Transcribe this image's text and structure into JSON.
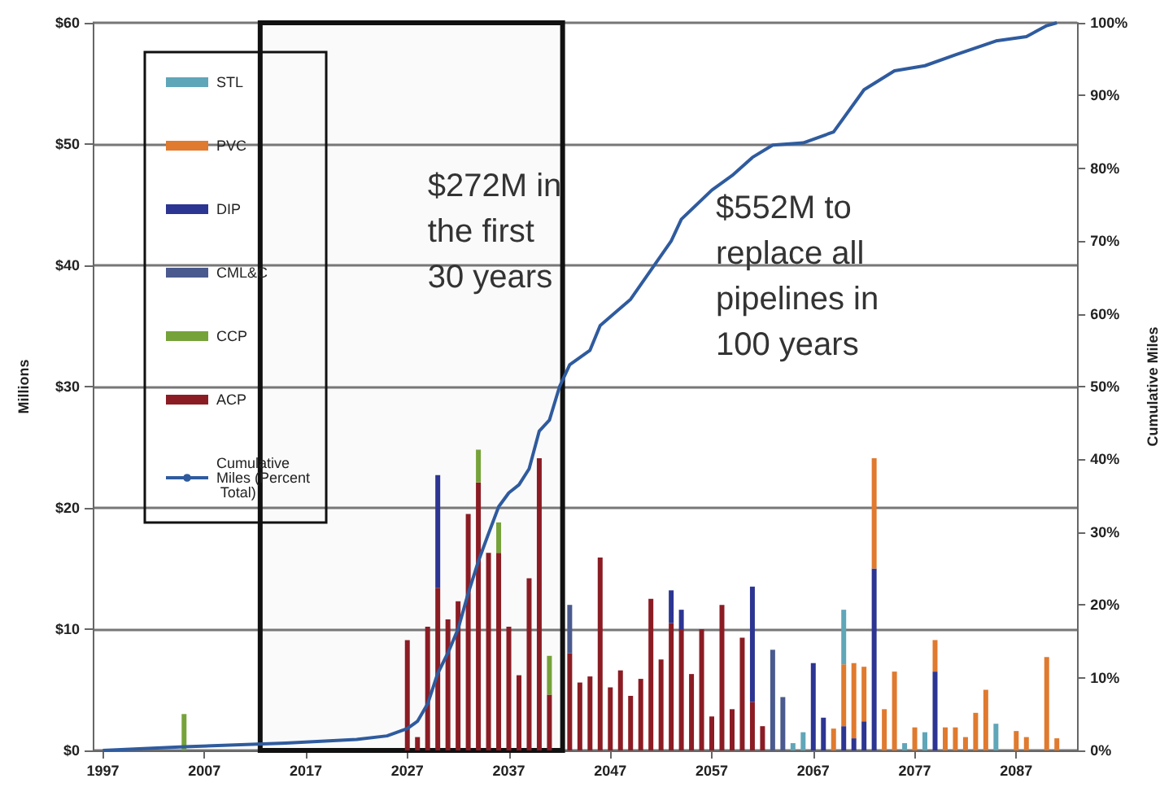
{
  "chart_data": {
    "type": "bar",
    "stacked": true,
    "ylabel": "Millions",
    "y2label": "Cumulative Miles",
    "x": [
      2005,
      2027,
      2028,
      2029,
      2030,
      2031,
      2032,
      2033,
      2034,
      2035,
      2036,
      2037,
      2038,
      2039,
      2040,
      2041,
      2043,
      2044,
      2045,
      2046,
      2047,
      2048,
      2049,
      2050,
      2051,
      2052,
      2053,
      2054,
      2055,
      2056,
      2057,
      2058,
      2059,
      2060,
      2061,
      2062,
      2063,
      2064,
      2065,
      2066,
      2067,
      2068,
      2069,
      2070,
      2071,
      2072,
      2073,
      2074,
      2075,
      2076,
      2077,
      2078,
      2079,
      2080,
      2081,
      2082,
      2083,
      2084,
      2085,
      2087,
      2088,
      2090,
      2091
    ],
    "series": [
      {
        "name": "ACP",
        "color": "#8b1c24",
        "values": [
          null,
          9.1,
          1.1,
          10.2,
          13.4,
          10.8,
          12.3,
          19.5,
          22.1,
          16.3,
          16.3,
          10.2,
          6.2,
          14.2,
          24.1,
          4.6,
          8,
          5.6,
          6.1,
          15.9,
          5.2,
          6.6,
          4.5,
          5.9,
          12.5,
          7.5,
          10.5,
          10,
          6.3,
          10,
          2.8,
          12,
          3.4,
          9.3,
          4,
          2,
          null,
          null,
          null,
          null,
          null,
          null,
          null,
          null,
          null,
          null,
          null,
          null,
          null,
          null,
          null,
          null,
          null,
          null,
          null,
          null,
          null,
          null,
          null,
          null,
          null,
          null,
          null
        ]
      },
      {
        "name": "CCP",
        "color": "#76a23a",
        "values": [
          3,
          null,
          null,
          null,
          null,
          null,
          null,
          null,
          2.7,
          null,
          2.5,
          null,
          null,
          null,
          null,
          3.2,
          null,
          null,
          null,
          null,
          null,
          null,
          null,
          null,
          null,
          null,
          null,
          null,
          null,
          null,
          null,
          null,
          null,
          null,
          null,
          null,
          null,
          null,
          null,
          null,
          null,
          null,
          null,
          null,
          null,
          null,
          null,
          null,
          null,
          null,
          null,
          null,
          null,
          null,
          null,
          null,
          null,
          null,
          null,
          null,
          null,
          null,
          null
        ]
      },
      {
        "name": "CML&C",
        "color": "#4a5a8e",
        "values": [
          null,
          null,
          null,
          null,
          null,
          null,
          null,
          null,
          null,
          null,
          null,
          null,
          null,
          null,
          null,
          null,
          4,
          null,
          null,
          null,
          null,
          null,
          null,
          null,
          null,
          null,
          null,
          null,
          null,
          null,
          null,
          null,
          null,
          null,
          null,
          null,
          8.3,
          4.4,
          null,
          null,
          null,
          null,
          null,
          null,
          null,
          null,
          null,
          null,
          null,
          null,
          null,
          null,
          null,
          null,
          null,
          null,
          null,
          null,
          null,
          null,
          null,
          null,
          null
        ]
      },
      {
        "name": "DIP",
        "color": "#2c3592",
        "values": [
          null,
          null,
          null,
          null,
          9.3,
          null,
          null,
          null,
          null,
          null,
          null,
          null,
          null,
          null,
          null,
          null,
          null,
          null,
          null,
          null,
          null,
          null,
          null,
          null,
          null,
          null,
          2.7,
          1.6,
          null,
          null,
          null,
          null,
          null,
          null,
          9.5,
          null,
          null,
          null,
          null,
          null,
          7.2,
          2.7,
          null,
          2,
          1,
          2.4,
          15,
          null,
          null,
          null,
          null,
          null,
          6.5,
          null,
          null,
          null,
          null,
          null,
          null,
          null,
          null,
          null,
          null
        ]
      },
      {
        "name": "PVC",
        "color": "#e07a2e",
        "values": [
          null,
          null,
          null,
          null,
          null,
          null,
          null,
          null,
          null,
          null,
          null,
          null,
          null,
          null,
          null,
          null,
          null,
          null,
          null,
          null,
          null,
          null,
          null,
          null,
          null,
          null,
          null,
          null,
          null,
          null,
          null,
          null,
          null,
          null,
          null,
          null,
          null,
          null,
          null,
          null,
          null,
          null,
          1.8,
          5.1,
          6.2,
          4.5,
          9.1,
          3.4,
          6.5,
          null,
          1.9,
          null,
          2.6,
          1.9,
          1.9,
          1.1,
          3.1,
          5,
          null,
          1.6,
          1.1,
          7.7,
          1
        ]
      },
      {
        "name": "STL",
        "color": "#5fa6b8",
        "values": [
          null,
          null,
          null,
          null,
          null,
          null,
          null,
          null,
          null,
          null,
          null,
          null,
          null,
          null,
          null,
          null,
          null,
          null,
          null,
          null,
          null,
          null,
          null,
          null,
          null,
          null,
          null,
          null,
          null,
          null,
          null,
          null,
          null,
          null,
          null,
          null,
          null,
          null,
          0.6,
          1.5,
          null,
          null,
          null,
          4.5,
          null,
          null,
          null,
          null,
          null,
          0.6,
          null,
          1.5,
          null,
          null,
          null,
          null,
          null,
          null,
          2.2,
          null,
          null,
          null,
          null
        ]
      },
      {
        "name": "Cumulative Miles (Percent Total)",
        "type": "line",
        "axis": "y2",
        "color": "#2f5b9e",
        "x": [
          1997,
          2005,
          2015,
          2022,
          2025,
          2026,
          2027,
          2028,
          2029,
          2030,
          2031,
          2032,
          2033,
          2034,
          2035,
          2036,
          2037,
          2038,
          2039,
          2040,
          2041,
          2042,
          2043,
          2045,
          2046,
          2049,
          2051,
          2053,
          2054,
          2057,
          2059,
          2061,
          2063,
          2066,
          2069,
          2072,
          2075,
          2078,
          2081,
          2085,
          2088,
          2090,
          2091
        ],
        "values": [
          0,
          0.5,
          1,
          1.5,
          2,
          2.5,
          3,
          4,
          6.4,
          10.6,
          13.4,
          16.7,
          21.6,
          26,
          29.8,
          33.5,
          35.4,
          36.5,
          38.7,
          43.9,
          45.4,
          50,
          53,
          55,
          58.4,
          62,
          66,
          70,
          73,
          77,
          79,
          81.5,
          83.2,
          83.5,
          85,
          90.8,
          93.4,
          94.1,
          95.6,
          97.5,
          98.1,
          99.6,
          100
        ]
      }
    ],
    "xlim": [
      1996,
      2093
    ],
    "xticks": [
      1997,
      2007,
      2017,
      2027,
      2037,
      2047,
      2057,
      2067,
      2077,
      2087
    ],
    "ylim": [
      0,
      60
    ],
    "yticks": [
      {
        "value": 0,
        "label": "$0"
      },
      {
        "value": 10,
        "label": "$10"
      },
      {
        "value": 20,
        "label": "$20"
      },
      {
        "value": 30,
        "label": "$30"
      },
      {
        "value": 40,
        "label": "$40"
      },
      {
        "value": 50,
        "label": "$50"
      },
      {
        "value": 60,
        "label": "$60"
      }
    ],
    "y2lim": [
      0,
      100
    ],
    "y2ticks": [
      {
        "value": 0,
        "label": "0%"
      },
      {
        "value": 10,
        "label": "10%"
      },
      {
        "value": 20,
        "label": "20%"
      },
      {
        "value": 30,
        "label": "30%"
      },
      {
        "value": 40,
        "label": "40%"
      },
      {
        "value": 50,
        "label": "50%"
      },
      {
        "value": 60,
        "label": "60%"
      },
      {
        "value": 70,
        "label": "70%"
      },
      {
        "value": 80,
        "label": "80%"
      },
      {
        "value": 90,
        "label": "90%"
      },
      {
        "value": 100,
        "label": "100%"
      }
    ],
    "grid": "y",
    "legend": "top left",
    "marker": "none",
    "bands": [
      {
        "axis": "x",
        "from": 2012.5,
        "to": 2042.3,
        "label": "$272M in the first 30 years"
      }
    ],
    "annotations": [
      "$552M to replace all pipelines in 100 years"
    ]
  }
}
